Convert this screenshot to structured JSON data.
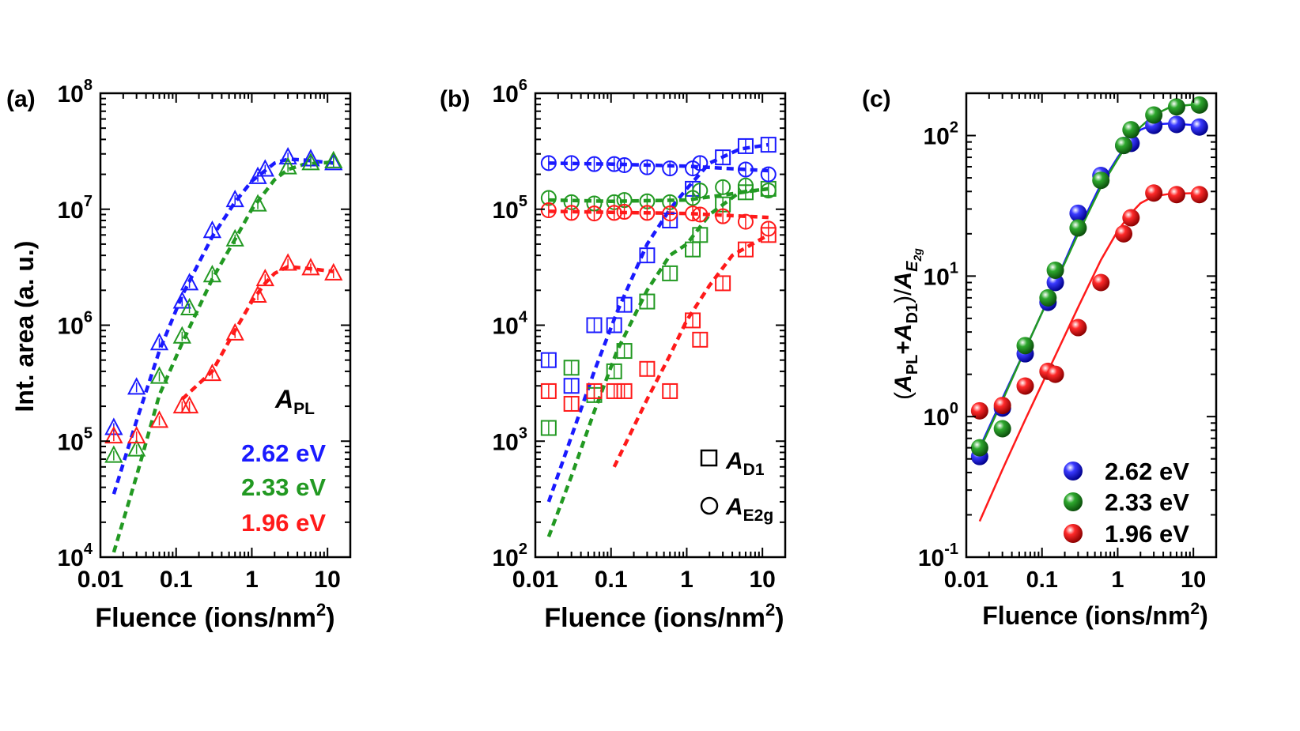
{
  "colors": {
    "blue": "#1a1aff",
    "green": "#229922",
    "red": "#ff1a1a"
  },
  "chart_data": [
    {
      "type": "scatter",
      "panel_label": "(a)",
      "title": "",
      "xlabel": "Fluence (ions/nm",
      "xlabel_sup": "2",
      "xlabel_close": ")",
      "ylabel": "Int. area  (a. u.)",
      "xscale": "log",
      "yscale": "log",
      "xlim": [
        0.01,
        20
      ],
      "ylim": [
        10000,
        100000000
      ],
      "xticks": [
        {
          "v": 0.01,
          "label": "0.01"
        },
        {
          "v": 0.1,
          "label": "0.1"
        },
        {
          "v": 1,
          "label": "1"
        },
        {
          "v": 10,
          "label": "10"
        }
      ],
      "yticks": [
        {
          "v": 10000,
          "base": "10",
          "exp": "4"
        },
        {
          "v": 100000,
          "base": "10",
          "exp": "5"
        },
        {
          "v": 1000000,
          "base": "10",
          "exp": "6"
        },
        {
          "v": 10000000,
          "base": "10",
          "exp": "7"
        },
        {
          "v": 100000000,
          "base": "10",
          "exp": "8"
        }
      ],
      "legend_title": {
        "main": "A",
        "sub": "PL"
      },
      "legend_placement": "bottom-right",
      "series": [
        {
          "name": "2.62 eV",
          "color": "blue",
          "marker": "triangle",
          "x": [
            0.015,
            0.03,
            0.06,
            0.12,
            0.15,
            0.3,
            0.6,
            1.2,
            1.5,
            3,
            6,
            12
          ],
          "y": [
            130000,
            290000,
            700000,
            1600000,
            2300000,
            6500000,
            12000000,
            19000000,
            22000000,
            28000000,
            27000000,
            25000000
          ],
          "fit_x": [
            0.015,
            0.03,
            0.06,
            0.12,
            0.3,
            0.6,
            1,
            2,
            3,
            5,
            12
          ],
          "fit_y": [
            35000,
            150000,
            600000,
            1800000,
            5800000,
            11500000,
            17500000,
            25000000,
            27000000,
            26500000,
            25000000
          ]
        },
        {
          "name": "2.33 eV",
          "color": "green",
          "marker": "triangle",
          "x": [
            0.015,
            0.03,
            0.06,
            0.12,
            0.15,
            0.3,
            0.6,
            1.2,
            3,
            6,
            12
          ],
          "y": [
            75000,
            85000,
            360000,
            800000,
            1400000,
            2700000,
            5500000,
            11000000,
            23000000,
            25000000,
            26000000
          ],
          "fit_x": [
            0.015,
            0.03,
            0.06,
            0.12,
            0.3,
            0.6,
            1,
            2,
            3,
            5,
            12
          ],
          "fit_y": [
            11000,
            50000,
            250000,
            700000,
            2500000,
            5500000,
            10000000,
            18000000,
            22000000,
            24500000,
            25500000
          ]
        },
        {
          "name": "1.96 eV",
          "color": "red",
          "marker": "triangle",
          "x": [
            0.015,
            0.03,
            0.06,
            0.12,
            0.15,
            0.3,
            0.6,
            1.2,
            1.5,
            3,
            6,
            12
          ],
          "y": [
            110000,
            110000,
            150000,
            200000,
            200000,
            380000,
            850000,
            1800000,
            2500000,
            3400000,
            3100000,
            2800000
          ],
          "fit_x": [
            0.12,
            0.3,
            0.6,
            1,
            1.5,
            2,
            3,
            5,
            8,
            12
          ],
          "fit_y": [
            230000,
            400000,
            900000,
            1600000,
            2300000,
            2800000,
            3200000,
            3100000,
            3000000,
            2900000
          ]
        }
      ]
    },
    {
      "type": "scatter",
      "panel_label": "(b)",
      "title": "",
      "xlabel": "Fluence (ions/nm",
      "xlabel_sup": "2",
      "xlabel_close": ")",
      "ylabel": "",
      "xscale": "log",
      "yscale": "log",
      "xlim": [
        0.01,
        20
      ],
      "ylim": [
        100,
        1000000
      ],
      "xticks": [
        {
          "v": 0.01,
          "label": "0.01"
        },
        {
          "v": 0.1,
          "label": "0.1"
        },
        {
          "v": 1,
          "label": "1"
        },
        {
          "v": 10,
          "label": "10"
        }
      ],
      "yticks": [
        {
          "v": 100,
          "base": "10",
          "exp": "2"
        },
        {
          "v": 1000,
          "base": "10",
          "exp": "3"
        },
        {
          "v": 10000,
          "base": "10",
          "exp": "4"
        },
        {
          "v": 100000,
          "base": "10",
          "exp": "5"
        },
        {
          "v": 1000000,
          "base": "10",
          "exp": "6"
        }
      ],
      "legend": [
        {
          "symbol": "square",
          "main": "A",
          "sub": "D1"
        },
        {
          "symbol": "circle",
          "main": "A",
          "sub": "E2g"
        }
      ],
      "legend_placement": "bottom-right",
      "series": [
        {
          "name": "A_D1 2.62 eV",
          "color": "blue",
          "marker": "square",
          "x": [
            0.015,
            0.03,
            0.06,
            0.11,
            0.15,
            0.3,
            0.6,
            1.2,
            3,
            6,
            12
          ],
          "y": [
            5000,
            3000,
            10000,
            10000,
            15000,
            40000,
            80000,
            150000,
            280000,
            350000,
            360000
          ],
          "fit_x": [
            0.015,
            0.03,
            0.06,
            0.12,
            0.3,
            0.6,
            1,
            2,
            5,
            12
          ],
          "fit_y": [
            300,
            1100,
            4000,
            13000,
            50000,
            100000,
            150000,
            250000,
            330000,
            360000
          ]
        },
        {
          "name": "A_D1 2.33 eV",
          "color": "green",
          "marker": "square",
          "x": [
            0.015,
            0.03,
            0.06,
            0.11,
            0.15,
            0.3,
            0.6,
            1.2,
            1.5,
            3,
            6,
            12
          ],
          "y": [
            1300,
            4300,
            2500,
            4000,
            6000,
            16000,
            28000,
            45000,
            60000,
            110000,
            140000,
            150000
          ],
          "fit_x": [
            0.015,
            0.03,
            0.06,
            0.12,
            0.3,
            0.6,
            1,
            2,
            5,
            12
          ],
          "fit_y": [
            150,
            500,
            1800,
            6000,
            20000,
            40000,
            50000,
            90000,
            140000,
            150000
          ]
        },
        {
          "name": "A_D1 1.96 eV",
          "color": "red",
          "marker": "square",
          "x": [
            0.015,
            0.03,
            0.06,
            0.11,
            0.15,
            0.3,
            0.6,
            1.2,
            1.5,
            3,
            6,
            12
          ],
          "y": [
            2700,
            2100,
            2700,
            2700,
            2700,
            4200,
            2700,
            11000,
            7500,
            23000,
            45000,
            60000
          ],
          "fit_x": [
            0.11,
            0.3,
            0.6,
            1,
            2,
            4,
            12
          ],
          "fit_y": [
            600,
            2300,
            5500,
            11000,
            22000,
            40000,
            60000
          ]
        },
        {
          "name": "A_E2g 2.62 eV",
          "color": "blue",
          "marker": "circle",
          "x": [
            0.015,
            0.03,
            0.06,
            0.11,
            0.15,
            0.3,
            0.6,
            1.2,
            1.5,
            6,
            12
          ],
          "y": [
            250000,
            250000,
            245000,
            245000,
            240000,
            230000,
            225000,
            225000,
            250000,
            220000,
            200000
          ],
          "fit_x": [
            0.015,
            0.1,
            1,
            12
          ],
          "fit_y": [
            250000,
            245000,
            235000,
            215000
          ]
        },
        {
          "name": "A_E2g 2.33 eV",
          "color": "green",
          "marker": "circle",
          "x": [
            0.015,
            0.03,
            0.06,
            0.11,
            0.15,
            0.3,
            0.6,
            1.2,
            1.5,
            3,
            6,
            12
          ],
          "y": [
            125000,
            115000,
            112000,
            115000,
            120000,
            117000,
            115000,
            125000,
            145000,
            155000,
            160000,
            145000
          ],
          "fit_x": [
            0.015,
            0.1,
            1,
            12
          ],
          "fit_y": [
            120000,
            117000,
            120000,
            150000
          ]
        },
        {
          "name": "A_E2g 1.96 eV",
          "color": "red",
          "marker": "circle",
          "x": [
            0.015,
            0.03,
            0.06,
            0.11,
            0.15,
            0.3,
            0.6,
            1.2,
            1.5,
            3,
            6,
            12
          ],
          "y": [
            98000,
            93000,
            92000,
            93000,
            95000,
            93000,
            92000,
            92000,
            90000,
            87000,
            78000,
            68000
          ],
          "fit_x": [
            0.015,
            0.1,
            1,
            12
          ],
          "fit_y": [
            96000,
            94000,
            92000,
            85000
          ]
        }
      ]
    },
    {
      "type": "scatter",
      "panel_label": "(c)",
      "title": "",
      "xlabel": "Fluence (ions/nm",
      "xlabel_sup": "2",
      "xlabel_close": ")",
      "ylabel_parts": {
        "open": "(",
        "a": "A",
        "pl": "PL",
        "plus": "+",
        "d": "D1",
        "close": ")/",
        "e": "E",
        "esub": "2g"
      },
      "xscale": "log",
      "yscale": "log",
      "xlim": [
        0.01,
        20
      ],
      "ylim": [
        0.1,
        200
      ],
      "xticks": [
        {
          "v": 0.01,
          "label": "0.01"
        },
        {
          "v": 0.1,
          "label": "0.1"
        },
        {
          "v": 1,
          "label": "1"
        },
        {
          "v": 10,
          "label": "10"
        }
      ],
      "yticks": [
        {
          "v": 0.1,
          "base": "10",
          "exp": "-1"
        },
        {
          "v": 1,
          "base": "10",
          "exp": "0"
        },
        {
          "v": 10,
          "base": "10",
          "exp": "1"
        },
        {
          "v": 100,
          "base": "10",
          "exp": "2"
        }
      ],
      "legend_placement": "bottom-right",
      "series": [
        {
          "name": "2.62 eV",
          "color": "blue",
          "marker": "ball",
          "x": [
            0.015,
            0.03,
            0.06,
            0.12,
            0.15,
            0.3,
            0.6,
            1.2,
            1.5,
            3,
            6,
            12
          ],
          "y": [
            0.52,
            1.15,
            2.8,
            6.5,
            9,
            28,
            52,
            85,
            88,
            118,
            120,
            115
          ],
          "fit_x": [
            0.015,
            0.03,
            0.06,
            0.12,
            0.3,
            0.6,
            1,
            1.5,
            2,
            3,
            5,
            12
          ],
          "fit_y": [
            0.6,
            1.35,
            3.0,
            6.8,
            21,
            45,
            70,
            95,
            110,
            120,
            122,
            118
          ]
        },
        {
          "name": "2.33 eV",
          "color": "green",
          "marker": "ball",
          "x": [
            0.015,
            0.03,
            0.06,
            0.12,
            0.15,
            0.3,
            0.6,
            1.2,
            1.5,
            3,
            6,
            12
          ],
          "y": [
            0.6,
            0.82,
            3.2,
            7,
            11,
            22,
            48,
            85,
            110,
            140,
            160,
            165
          ],
          "fit_x": [
            0.015,
            0.03,
            0.06,
            0.12,
            0.3,
            0.6,
            1,
            1.5,
            2,
            3,
            5,
            12
          ],
          "fit_y": [
            0.58,
            1.3,
            3.0,
            6.8,
            20,
            43,
            68,
            95,
            115,
            140,
            160,
            168
          ]
        },
        {
          "name": "1.96 eV",
          "color": "red",
          "marker": "ball",
          "x": [
            0.015,
            0.03,
            0.06,
            0.12,
            0.15,
            0.3,
            0.6,
            1.2,
            1.5,
            3,
            6,
            12
          ],
          "y": [
            1.1,
            1.2,
            1.65,
            2.1,
            2.0,
            4.3,
            9,
            20,
            26,
            39,
            38,
            38
          ],
          "fit_x": [
            0.015,
            0.03,
            0.06,
            0.12,
            0.3,
            0.6,
            1,
            1.5,
            2,
            3,
            5,
            12
          ],
          "fit_y": [
            0.18,
            0.42,
            0.95,
            2.1,
            6,
            13,
            21,
            28,
            33,
            37,
            38.5,
            39
          ]
        }
      ]
    }
  ]
}
